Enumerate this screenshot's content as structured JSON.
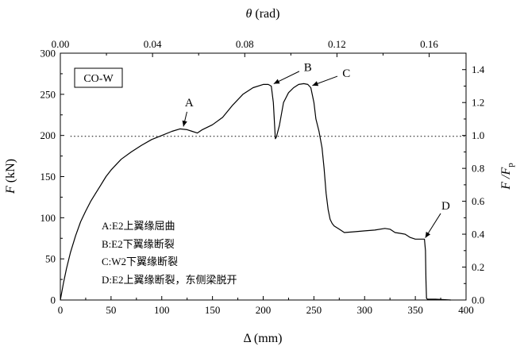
{
  "chart_data": {
    "type": "line",
    "panel_label": "CO-W",
    "xlabel": "Δ (mm)",
    "ylabel": "F (kN)",
    "ylabel_main": "F",
    "ylabel_unit": " (kN)",
    "x2label": "θ (rad)",
    "x2label_main": "θ",
    "x2label_unit": " (rad)",
    "y2label": "F /Fp",
    "y2label_main": "F /F",
    "y2label_sub": "p",
    "xlim": [
      0,
      400
    ],
    "ylim": [
      0,
      300
    ],
    "x2lim": [
      0,
      0.176
    ],
    "y2lim": [
      0,
      1.5
    ],
    "x_ticks": [
      0,
      50,
      100,
      150,
      200,
      250,
      300,
      350,
      400
    ],
    "y_ticks": [
      0,
      50,
      100,
      150,
      200,
      250,
      300
    ],
    "x2_ticks": [
      0.0,
      0.04,
      0.08,
      0.12,
      0.16
    ],
    "x2_tick_labels": [
      "0.00",
      "0.04",
      "0.08",
      "0.12",
      "0.16"
    ],
    "y2_ticks": [
      0.0,
      0.2,
      0.4,
      0.6,
      0.8,
      1.0,
      1.2,
      1.4
    ],
    "y2_tick_labels": [
      "0.0",
      "0.2",
      "0.4",
      "0.6",
      "0.8",
      "1.0",
      "1.2",
      "1.4"
    ],
    "reference_line_y": 199,
    "grid": false,
    "series": [
      {
        "x": [
          0,
          3,
          6,
          10,
          15,
          20,
          25,
          30,
          35,
          40,
          45,
          50,
          60,
          70,
          80,
          90,
          100,
          110,
          118,
          125,
          130,
          135,
          140,
          150,
          160,
          170,
          180,
          190,
          200,
          205,
          208,
          210,
          212,
          213,
          216,
          220,
          225,
          230,
          235,
          240,
          244,
          247,
          250,
          252,
          255,
          258,
          260,
          262,
          264,
          266,
          268,
          270,
          275,
          280,
          290,
          300,
          310,
          320,
          325,
          330,
          335,
          340,
          345,
          350,
          355,
          359,
          360,
          360.5,
          361,
          362,
          370,
          385
        ],
        "y": [
          0,
          20,
          38,
          58,
          78,
          95,
          108,
          120,
          130,
          140,
          150,
          158,
          171,
          180,
          188,
          195,
          200,
          205,
          208,
          207,
          205,
          203,
          207,
          213,
          222,
          237,
          250,
          258,
          262,
          262,
          260,
          240,
          196,
          198,
          212,
          240,
          252,
          258,
          262,
          263,
          262,
          258,
          240,
          220,
          205,
          185,
          160,
          130,
          110,
          98,
          93,
          90,
          86,
          82,
          83,
          84,
          85,
          87,
          86,
          82,
          81,
          80,
          76,
          74,
          74,
          74,
          60,
          25,
          2,
          1,
          1,
          0
        ]
      }
    ],
    "annotations": [
      {
        "label": "A",
        "x": 121,
        "y": 209,
        "text_x": 127,
        "text_y": 240
      },
      {
        "label": "B",
        "x": 209,
        "y": 262,
        "text_x": 244,
        "text_y": 283
      },
      {
        "label": "C",
        "x": 247,
        "y": 260,
        "text_x": 282,
        "text_y": 276
      },
      {
        "label": "D",
        "x": 359,
        "y": 74,
        "text_x": 380,
        "text_y": 115
      }
    ],
    "legend_entries": [
      "A:E2上翼缘屈曲",
      "B:E2下翼缘断裂",
      "C:W2下翼缘断裂",
      "D:E2上翼缘断裂，东侧梁脱开"
    ]
  }
}
